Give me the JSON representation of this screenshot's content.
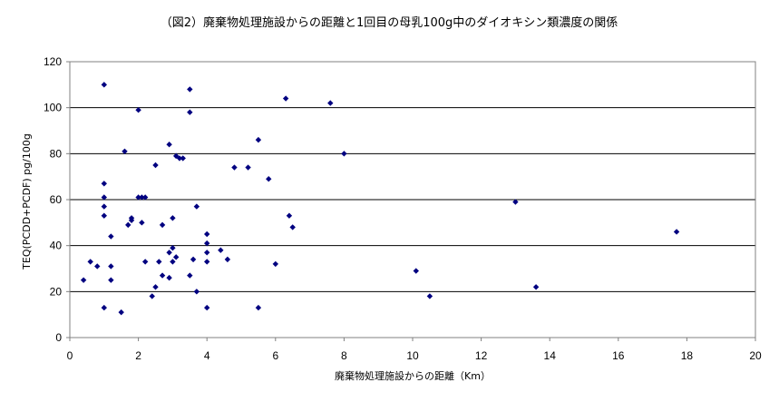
{
  "chart_data": {
    "type": "scatter",
    "title": "（図2）廃棄物処理施設からの距離と1回目の母乳100g中のダイオキシン類濃度の関係",
    "xlabel": "廃棄物処理施設からの距離（Km）",
    "ylabel": "TEQ(PCDD+PCDF) pg/100g",
    "xlim": [
      0,
      20
    ],
    "ylim": [
      0,
      120
    ],
    "x_ticks": [
      "0",
      "2",
      "4",
      "6",
      "8",
      "10",
      "12",
      "14",
      "16",
      "18",
      "20"
    ],
    "y_ticks": [
      "0",
      "20",
      "40",
      "60",
      "80",
      "100",
      "120"
    ],
    "grid": "horizontal",
    "marker_color": "#000080",
    "points": [
      [
        0.4,
        25
      ],
      [
        0.6,
        33
      ],
      [
        0.8,
        31
      ],
      [
        1.0,
        110
      ],
      [
        1.0,
        67
      ],
      [
        1.0,
        61
      ],
      [
        1.0,
        57
      ],
      [
        1.0,
        53
      ],
      [
        1.0,
        13
      ],
      [
        1.2,
        44
      ],
      [
        1.2,
        31
      ],
      [
        1.2,
        25
      ],
      [
        1.5,
        11
      ],
      [
        1.6,
        81
      ],
      [
        1.7,
        49
      ],
      [
        1.8,
        52
      ],
      [
        1.8,
        51
      ],
      [
        2.0,
        99
      ],
      [
        2.0,
        61
      ],
      [
        2.1,
        61
      ],
      [
        2.1,
        50
      ],
      [
        2.2,
        61
      ],
      [
        2.2,
        33
      ],
      [
        2.4,
        18
      ],
      [
        2.5,
        75
      ],
      [
        2.5,
        22
      ],
      [
        2.6,
        33
      ],
      [
        2.7,
        49
      ],
      [
        2.7,
        27
      ],
      [
        2.9,
        84
      ],
      [
        2.9,
        37
      ],
      [
        2.9,
        26
      ],
      [
        3.0,
        52
      ],
      [
        3.0,
        39
      ],
      [
        3.0,
        33
      ],
      [
        3.1,
        79
      ],
      [
        3.1,
        35
      ],
      [
        3.2,
        78
      ],
      [
        3.3,
        78
      ],
      [
        3.5,
        108
      ],
      [
        3.5,
        98
      ],
      [
        3.5,
        27
      ],
      [
        3.6,
        34
      ],
      [
        3.7,
        57
      ],
      [
        3.7,
        20
      ],
      [
        4.0,
        45
      ],
      [
        4.0,
        41
      ],
      [
        4.0,
        37
      ],
      [
        4.0,
        33
      ],
      [
        4.0,
        13
      ],
      [
        4.4,
        38
      ],
      [
        4.6,
        34
      ],
      [
        4.8,
        74
      ],
      [
        5.2,
        74
      ],
      [
        5.5,
        86
      ],
      [
        5.5,
        13
      ],
      [
        5.8,
        69
      ],
      [
        6.0,
        32
      ],
      [
        6.3,
        104
      ],
      [
        6.4,
        53
      ],
      [
        6.5,
        48
      ],
      [
        7.6,
        102
      ],
      [
        8.0,
        80
      ],
      [
        10.1,
        29
      ],
      [
        10.5,
        18
      ],
      [
        13.0,
        59
      ],
      [
        13.6,
        22
      ],
      [
        17.7,
        46
      ]
    ]
  }
}
